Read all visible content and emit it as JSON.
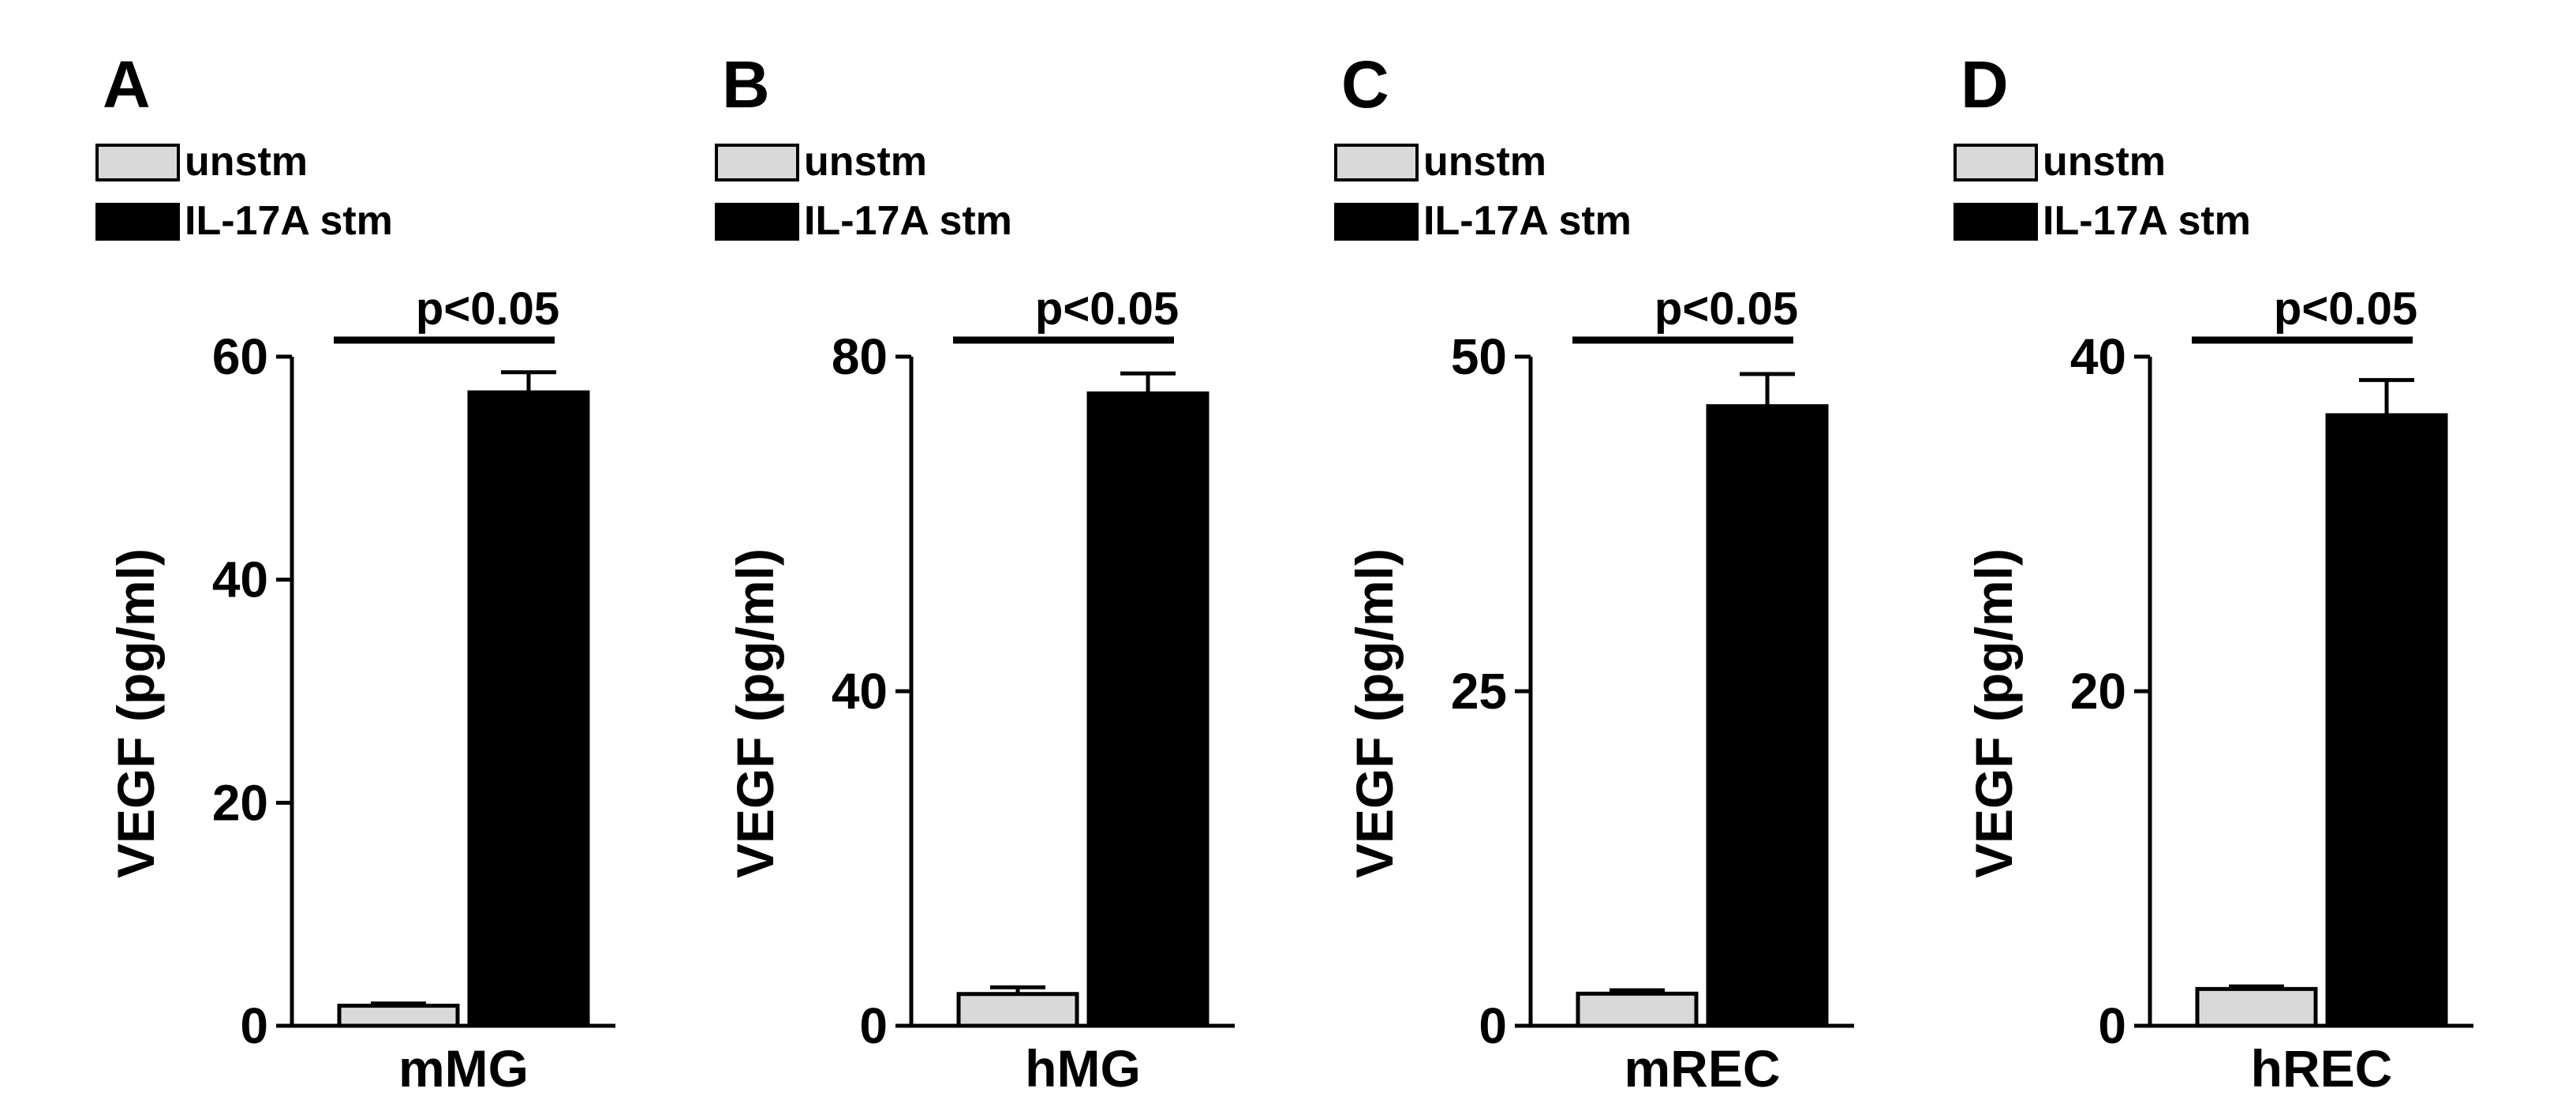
{
  "colors": {
    "unstim": "#d9d9d9",
    "stim": "#000000",
    "axis": "#000000",
    "bar_edge": "#000000"
  },
  "chart_data": [
    {
      "type": "bar",
      "panel": "A",
      "category": "mMG",
      "ylabel": "VEGF (pg/ml)",
      "ylim": [
        0,
        60
      ],
      "ticks": [
        0,
        20,
        40,
        60
      ],
      "tick_labels": [
        "0",
        "20",
        "40",
        "60"
      ],
      "legend": [
        "unstm",
        "IL-17A stm"
      ],
      "significance": "p<0.05",
      "series": [
        {
          "name": "unstm",
          "value": 1.8,
          "error": 0.2
        },
        {
          "name": "IL-17A stm",
          "value": 56.8,
          "error": 1.8
        }
      ]
    },
    {
      "type": "bar",
      "panel": "B",
      "category": "hMG",
      "ylabel": "VEGF (pg/ml)",
      "ylim": [
        0,
        80
      ],
      "ticks": [
        0,
        40,
        80
      ],
      "tick_labels": [
        "0",
        "40",
        "80"
      ],
      "legend": [
        "unstm",
        "IL-17A stm"
      ],
      "significance": "p<0.05",
      "series": [
        {
          "name": "unstm",
          "value": 3.8,
          "error": 0.8
        },
        {
          "name": "IL-17A stm",
          "value": 75.6,
          "error": 2.4
        }
      ]
    },
    {
      "type": "bar",
      "panel": "C",
      "category": "mREC",
      "ylabel": "VEGF (pg/ml)",
      "ylim": [
        0,
        50
      ],
      "ticks": [
        0,
        25,
        50
      ],
      "tick_labels": [
        "0",
        "25",
        "50"
      ],
      "legend": [
        "unstm",
        "IL-17A stm"
      ],
      "significance": "p<0.05",
      "series": [
        {
          "name": "unstm",
          "value": 2.4,
          "error": 0.25
        },
        {
          "name": "IL-17A stm",
          "value": 46.3,
          "error": 2.4
        }
      ]
    },
    {
      "type": "bar",
      "panel": "D",
      "category": "hREC",
      "ylabel": "VEGF (pg/ml)",
      "ylim": [
        0,
        40
      ],
      "ticks": [
        0,
        20,
        40
      ],
      "tick_labels": [
        "0",
        "20",
        "40"
      ],
      "legend": [
        "unstm",
        "IL-17A stm"
      ],
      "significance": "p<0.05",
      "series": [
        {
          "name": "unstm",
          "value": 2.2,
          "error": 0.15
        },
        {
          "name": "IL-17A stm",
          "value": 36.5,
          "error": 2.1
        }
      ]
    }
  ]
}
